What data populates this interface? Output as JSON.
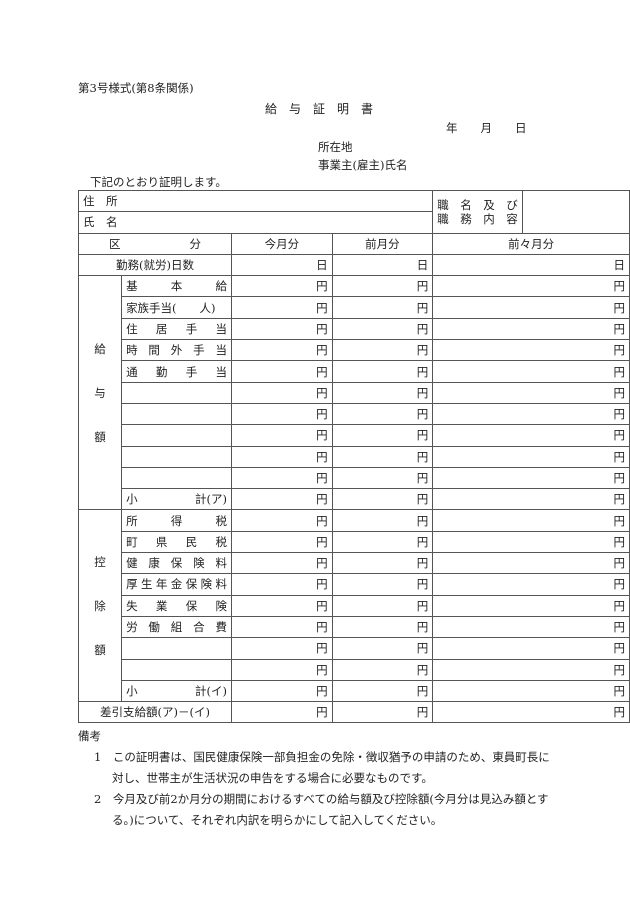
{
  "form_number": "第3号様式(第8条関係)",
  "title": "給　与　証　明　書",
  "date_label": "年　　月　　日",
  "location_label": "所在地",
  "employer_label": "事業主(雇主)氏名",
  "intro": "下記のとおり証明します。",
  "address_label": "住　所",
  "name_label": "氏　名",
  "job_label_1": "職　名　及　び",
  "job_label_2": "職　務　内　容",
  "headers": {
    "category": "区　　　　　　分",
    "this_month": "今月分",
    "last_month": "前月分",
    "two_months_ago": "前々月分"
  },
  "workdays": {
    "label": "勤務(就労)日数",
    "unit": "日"
  },
  "yen": "円",
  "salary": {
    "group_label": [
      "給",
      "与",
      "額"
    ],
    "items": [
      "基本給",
      "家族手当(　　人)",
      "住居手当",
      "時間外手当",
      "通勤手当",
      "",
      "",
      "",
      "",
      "",
      "小　　　　　計(ア)"
    ]
  },
  "deductions": {
    "group_label": [
      "控",
      "除",
      "額"
    ],
    "items": [
      "所得税",
      "町県民税",
      "健康保険料",
      "厚生年金保険料",
      "失業保険",
      "労働組合費",
      "",
      "",
      "小　　　　　計(イ)"
    ]
  },
  "net": {
    "label": "差引支給額(ア)－(イ)"
  },
  "notes": {
    "title": "備考",
    "items": [
      "1　この証明書は、国民健康保険一部負担金の免除・徴収猶予の申請のため、東員町長に対し、世帯主が生活状況の申告をする場合に必要なものです。",
      "2　今月及び前2か月分の期間におけるすべての給与額及び控除額(今月分は見込み額とする。)について、それぞれ内訳を明らかにして記入してください。"
    ]
  }
}
